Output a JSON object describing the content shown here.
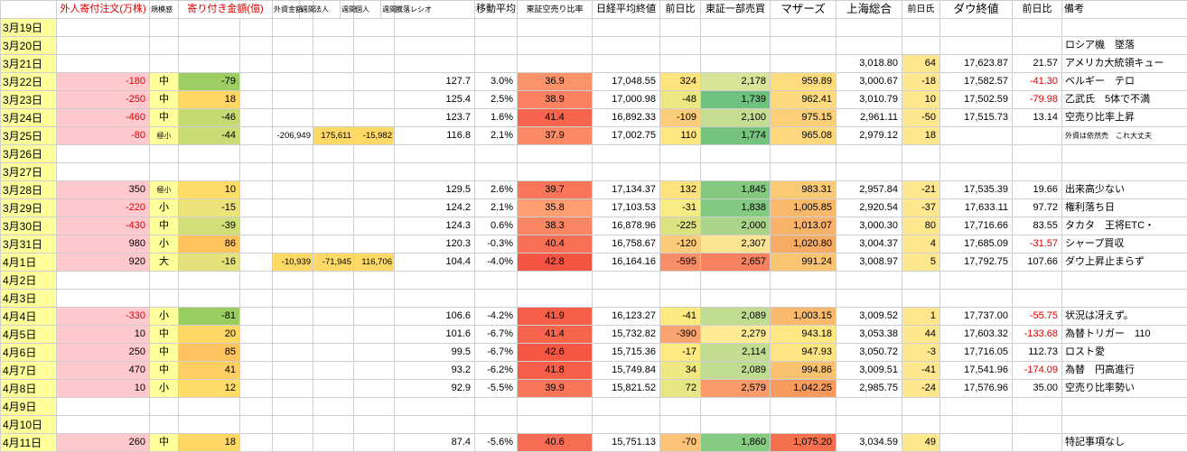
{
  "sheet": {
    "header": {
      "b": "外人寄付注文(万株)",
      "c": "規模感",
      "d": "寄り付き金額(億)",
      "mini": [
        "外資金額",
        "週間",
        "法人",
        "週間",
        "個人",
        "週間"
      ],
      "ratio": "騰落レシオ",
      "ma": "移動平均",
      "short": "東証空売り比率",
      "nikkei": "日経平均終値",
      "change": "前日比",
      "tse": "東証一部売買",
      "mothers": "マザーズ",
      "shanghai": "上海総合",
      "sh_change": "前日氏",
      "dow": "ダウ終値",
      "dow_change": "前日比",
      "remarks": "備考"
    },
    "rows": [
      {
        "date": "3月19日"
      },
      {
        "date": "3月20日",
        "remark": "ロシア機　墜落"
      },
      {
        "date": "3月21日",
        "shanghai": "3,018.80",
        "shchg": {
          "t": "64",
          "bg": "#FFE78F"
        },
        "dow": "17,623.87",
        "dowchg": "21.57",
        "remark": "アメリカ大統領キュー"
      },
      {
        "date": "3月22日",
        "b": {
          "t": "-180",
          "bg": "#FFC9CE",
          "fg": "#E00000"
        },
        "c": {
          "t": "中",
          "bg": "#FFFF9C"
        },
        "d": {
          "t": "-79",
          "bg": "#9CCE63"
        },
        "ratio": "127.7",
        "ma": "3.0%",
        "short": {
          "t": "36.9",
          "bg": "#FB926A"
        },
        "nikkei": "17,048.55",
        "chg": {
          "t": "324",
          "bg": "#FFE47E"
        },
        "tse": {
          "t": "2,178",
          "bg": "#D9E499"
        },
        "mothers": {
          "t": "959.89",
          "bg": "#FDDC7E"
        },
        "shanghai": "3,000.67",
        "shchg": {
          "t": "-18",
          "bg": "#FFE78F"
        },
        "dow": "17,582.57",
        "dowchg": {
          "t": "-41.30",
          "fg": "#E00000"
        },
        "remark": "ベルギー　テロ"
      },
      {
        "date": "3月23日",
        "b": {
          "t": "-250",
          "bg": "#FFC9CE",
          "fg": "#E00000"
        },
        "c": {
          "t": "中",
          "bg": "#FFFF9C"
        },
        "d": {
          "t": "18",
          "bg": "#FFD564"
        },
        "ratio": "125.4",
        "ma": "2.5%",
        "short": {
          "t": "38.9",
          "bg": "#F98060"
        },
        "nikkei": "17,000.98",
        "chg": {
          "t": "-48",
          "bg": "#EDE783"
        },
        "tse": {
          "t": "1,739",
          "bg": "#6FC27D"
        },
        "mothers": {
          "t": "962.41",
          "bg": "#FDDA7D"
        },
        "shanghai": "3,010.79",
        "shchg": {
          "t": "10",
          "bg": "#FFE78F"
        },
        "dow": "17,502.59",
        "dowchg": {
          "t": "-79.98",
          "fg": "#E00000"
        },
        "remark": "乙武氏　5体で不満"
      },
      {
        "date": "3月24日",
        "b": {
          "t": "-460",
          "bg": "#FFC9CE",
          "fg": "#E00000"
        },
        "c": {
          "t": "中",
          "bg": "#FFFF9C"
        },
        "d": {
          "t": "-46",
          "bg": "#C6DA74"
        },
        "ratio": "123.7",
        "ma": "1.6%",
        "short": {
          "t": "41.4",
          "bg": "#F6644D"
        },
        "nikkei": "16,892.33",
        "chg": {
          "t": "-109",
          "bg": "#FBCD7B"
        },
        "tse": {
          "t": "2,100",
          "bg": "#C4DD92"
        },
        "mothers": {
          "t": "975.15",
          "bg": "#FCD078"
        },
        "shanghai": "2,961.11",
        "shchg": {
          "t": "-50",
          "bg": "#FFE78F"
        },
        "dow": "17,515.73",
        "dowchg": "13.14",
        "remark": "空売り比率上昇"
      },
      {
        "date": "3月25日",
        "b": {
          "t": "-80",
          "bg": "#FFC9CE",
          "fg": "#E00000"
        },
        "c": {
          "t": "極小",
          "bg": "#FFFF9C",
          "sm": true
        },
        "d": {
          "t": "-44",
          "bg": "#C8DB74"
        },
        "e": {
          "t": "-206,949"
        },
        "f": {
          "t": "175,611",
          "bg": "#FFD966"
        },
        "g": {
          "t": "-15,982",
          "bg": "#FFD966"
        },
        "ratio": "116.8",
        "ma": "2.1%",
        "short": {
          "t": "37.9",
          "bg": "#FA8A66"
        },
        "nikkei": "17,002.75",
        "chg": {
          "t": "110",
          "bg": "#FEE680"
        },
        "tse": {
          "t": "1,774",
          "bg": "#74C47E"
        },
        "mothers": {
          "t": "965.08",
          "bg": "#FDD87C"
        },
        "shanghai": "2,979.12",
        "shchg": {
          "t": "18",
          "bg": "#FFE78F"
        },
        "remark": {
          "t": "外資は依然売　これ大丈夫",
          "sm": true
        }
      },
      {
        "date": "3月26日"
      },
      {
        "date": "3月27日"
      },
      {
        "date": "3月28日",
        "b": {
          "t": "350",
          "bg": "#FFC9CE"
        },
        "c": {
          "t": "極小",
          "bg": "#FFFF9C",
          "sm": true
        },
        "d": {
          "t": "10",
          "bg": "#FFDB67"
        },
        "ratio": "129.5",
        "ma": "2.6%",
        "short": {
          "t": "39.7",
          "bg": "#F8775B"
        },
        "nikkei": "17,134.37",
        "chg": {
          "t": "132",
          "bg": "#FDE27E"
        },
        "tse": {
          "t": "1,845",
          "bg": "#85C981"
        },
        "mothers": {
          "t": "983.31",
          "bg": "#FBCA75"
        },
        "shanghai": "2,957.84",
        "shchg": {
          "t": "-21",
          "bg": "#FFE78F"
        },
        "dow": "17,535.39",
        "dowchg": "19.66",
        "remark": "出来高少ない"
      },
      {
        "date": "3月29日",
        "b": {
          "t": "-220",
          "bg": "#FFC9CE",
          "fg": "#E00000"
        },
        "c": {
          "t": "小",
          "bg": "#FFFF9C"
        },
        "d": {
          "t": "-15",
          "bg": "#ECE27A"
        },
        "ratio": "124.2",
        "ma": "2.1%",
        "short": {
          "t": "35.8",
          "bg": "#FC9E70"
        },
        "nikkei": "17,103.53",
        "chg": {
          "t": "-31",
          "bg": "#F6EB84"
        },
        "tse": {
          "t": "1,838",
          "bg": "#84C981"
        },
        "mothers": {
          "t": "1,005.85",
          "bg": "#F9B86C"
        },
        "shanghai": "2,920.54",
        "shchg": {
          "t": "-37",
          "bg": "#FFE78F"
        },
        "dow": "17,633.11",
        "dowchg": "97.72",
        "remark": "権利落ち日"
      },
      {
        "date": "3月30日",
        "b": {
          "t": "-430",
          "bg": "#FFC9CE",
          "fg": "#E00000"
        },
        "c": {
          "t": "中",
          "bg": "#FFFF9C"
        },
        "d": {
          "t": "-39",
          "bg": "#D2DE77"
        },
        "ratio": "124.3",
        "ma": "0.6%",
        "short": {
          "t": "38.3",
          "bg": "#FA8663"
        },
        "nikkei": "16,878.96",
        "chg": {
          "t": "-225",
          "bg": "#DCE182"
        },
        "tse": {
          "t": "2,000",
          "bg": "#AAD48A"
        },
        "mothers": {
          "t": "1,013.07",
          "bg": "#F8B269"
        },
        "shanghai": "3,000.30",
        "shchg": {
          "t": "80",
          "bg": "#FFE78F"
        },
        "dow": "17,716.66",
        "dowchg": "83.55",
        "remark": "タカタ　王将ETC・"
      },
      {
        "date": "3月31日",
        "b": {
          "t": "980",
          "bg": "#FFC9CE"
        },
        "c": {
          "t": "小",
          "bg": "#FFFF9C"
        },
        "d": {
          "t": "86",
          "bg": "#FFC35E"
        },
        "ratio": "120.3",
        "ma": "-0.3%",
        "short": {
          "t": "40.4",
          "bg": "#F76F55"
        },
        "nikkei": "16,758.67",
        "chg": {
          "t": "-120",
          "bg": "#FACB7A"
        },
        "tse": {
          "t": "2,307",
          "bg": "#FBE491"
        },
        "mothers": {
          "t": "1,020.80",
          "bg": "#F7AC66"
        },
        "shanghai": "3,004.37",
        "shchg": {
          "t": "4",
          "bg": "#FFE78F"
        },
        "dow": "17,685.09",
        "dowchg": {
          "t": "-31.57",
          "fg": "#E00000"
        },
        "remark": "シャープ買収"
      },
      {
        "date": "4月1日",
        "b": {
          "t": "920",
          "bg": "#FFC9CE"
        },
        "c": {
          "t": "大",
          "bg": "#FFFF9C"
        },
        "d": {
          "t": "-16",
          "bg": "#E3E17A"
        },
        "e": {
          "t": "-10,939",
          "bg": "#FFD966"
        },
        "f": {
          "t": "-71,945",
          "bg": "#FFD966"
        },
        "g": {
          "t": "116,706",
          "bg": "#FFD966"
        },
        "ratio": "104.4",
        "ma": "-4.0%",
        "short": {
          "t": "42.8",
          "bg": "#F45442"
        },
        "nikkei": "16,164.16",
        "chg": {
          "t": "-595",
          "bg": "#F88E68"
        },
        "tse": {
          "t": "2,657",
          "bg": "#F88260"
        },
        "mothers": {
          "t": "991.24",
          "bg": "#FBC472"
        },
        "shanghai": "3,008.97",
        "shchg": {
          "t": "5",
          "bg": "#FFE78F"
        },
        "dow": "17,792.75",
        "dowchg": "107.66",
        "remark": "ダウ上昇止まらず"
      },
      {
        "date": "4月2日"
      },
      {
        "date": "4月3日"
      },
      {
        "date": "4月4日",
        "b": {
          "t": "-330",
          "bg": "#FFC9CE",
          "fg": "#E00000"
        },
        "c": {
          "t": "小",
          "bg": "#FFFF9C"
        },
        "d": {
          "t": "-81",
          "bg": "#99CD61"
        },
        "ratio": "106.6",
        "ma": "-4.2%",
        "short": {
          "t": "41.9",
          "bg": "#F55E49"
        },
        "nikkei": "16,123.27",
        "chg": {
          "t": "-41",
          "bg": "#FCE97F"
        },
        "tse": {
          "t": "2,089",
          "bg": "#C0DC91"
        },
        "mothers": {
          "t": "1,003.15",
          "bg": "#F9BA6D"
        },
        "shanghai": "3,009.52",
        "shchg": {
          "t": "1",
          "bg": "#FFE78F"
        },
        "dow": "17,737.00",
        "dowchg": {
          "t": "-55.75",
          "fg": "#E00000"
        },
        "remark": "状況は冴えず。"
      },
      {
        "date": "4月5日",
        "b": {
          "t": "10",
          "bg": "#FFC9CE"
        },
        "c": {
          "t": "中",
          "bg": "#FFFF9C"
        },
        "d": {
          "t": "20",
          "bg": "#FFD765"
        },
        "ratio": "101.6",
        "ma": "-6.7%",
        "short": {
          "t": "41.4",
          "bg": "#F6644D"
        },
        "nikkei": "15,732.82",
        "chg": {
          "t": "-390",
          "bg": "#FAA571"
        },
        "tse": {
          "t": "2,279",
          "bg": "#FDEA94"
        },
        "mothers": {
          "t": "943.18",
          "bg": "#FFE884"
        },
        "shanghai": "3,053.38",
        "shchg": {
          "t": "44",
          "bg": "#FFE78F"
        },
        "dow": "17,603.32",
        "dowchg": {
          "t": "-133.68",
          "fg": "#E00000"
        },
        "remark": "為替トリガー　110"
      },
      {
        "date": "4月6日",
        "b": {
          "t": "250",
          "bg": "#FFC9CE"
        },
        "c": {
          "t": "中",
          "bg": "#FFFF9C"
        },
        "d": {
          "t": "85",
          "bg": "#FFC35F"
        },
        "ratio": "99.5",
        "ma": "-6.7%",
        "short": {
          "t": "42.6",
          "bg": "#F45644"
        },
        "nikkei": "15,715.36",
        "chg": {
          "t": "-17",
          "bg": "#FFE981"
        },
        "tse": {
          "t": "2,114",
          "bg": "#C2DD92"
        },
        "mothers": {
          "t": "947.93",
          "bg": "#FEE482"
        },
        "shanghai": "3,050.72",
        "shchg": {
          "t": "-3",
          "bg": "#FFE78F"
        },
        "dow": "17,716.05",
        "dowchg": "112.73",
        "remark": "ロスト愛"
      },
      {
        "date": "4月7日",
        "b": {
          "t": "470",
          "bg": "#FFC9CE"
        },
        "c": {
          "t": "中",
          "bg": "#FFFF9C"
        },
        "d": {
          "t": "41",
          "bg": "#FFCF63"
        },
        "ratio": "93.2",
        "ma": "-6.2%",
        "short": {
          "t": "41.8",
          "bg": "#F55F4A"
        },
        "nikkei": "15,749.84",
        "chg": {
          "t": "34",
          "bg": "#EEE883"
        },
        "tse": {
          "t": "2,089",
          "bg": "#C0DC91"
        },
        "mothers": {
          "t": "994.86",
          "bg": "#FAC171"
        },
        "shanghai": "3,009.51",
        "shchg": {
          "t": "-41",
          "bg": "#FFE78F"
        },
        "dow": "17,541.96",
        "dowchg": {
          "t": "-174.09",
          "fg": "#E00000"
        },
        "remark": "為替　円高進行"
      },
      {
        "date": "4月8日",
        "b": {
          "t": "10",
          "bg": "#FFC9CE"
        },
        "c": {
          "t": "小",
          "bg": "#FFFF9C"
        },
        "d": {
          "t": "12",
          "bg": "#FFDB67"
        },
        "ratio": "92.9",
        "ma": "-5.5%",
        "short": {
          "t": "39.9",
          "bg": "#F87559"
        },
        "nikkei": "15,821.52",
        "chg": {
          "t": "72",
          "bg": "#E6E684"
        },
        "tse": {
          "t": "2,579",
          "bg": "#FA9A6B"
        },
        "mothers": {
          "t": "1,042.25",
          "bg": "#F69A5D"
        },
        "shanghai": "2,985.75",
        "shchg": {
          "t": "-24",
          "bg": "#FFE78F"
        },
        "dow": "17,576.96",
        "dowchg": "35.00",
        "remark": "空売り比率勢い"
      },
      {
        "date": "4月9日"
      },
      {
        "date": "4月10日"
      },
      {
        "date": "4月11日",
        "b": {
          "t": "260",
          "bg": "#FFC9CE"
        },
        "c": {
          "t": "中",
          "bg": "#FFFF9C"
        },
        "d": {
          "t": "18",
          "bg": "#FFD765"
        },
        "ratio": "87.4",
        "ma": "-5.6%",
        "short": {
          "t": "40.6",
          "bg": "#F76D53"
        },
        "nikkei": "15,751.13",
        "chg": {
          "t": "-70",
          "bg": "#FBC377"
        },
        "tse": {
          "t": "1,860",
          "bg": "#87CA82"
        },
        "mothers": {
          "t": "1,075.20",
          "bg": "#F5704D"
        },
        "shanghai": "3,034.59",
        "shchg": {
          "t": "49",
          "bg": "#FFE78F"
        },
        "remark": "特記事項なし"
      }
    ]
  }
}
